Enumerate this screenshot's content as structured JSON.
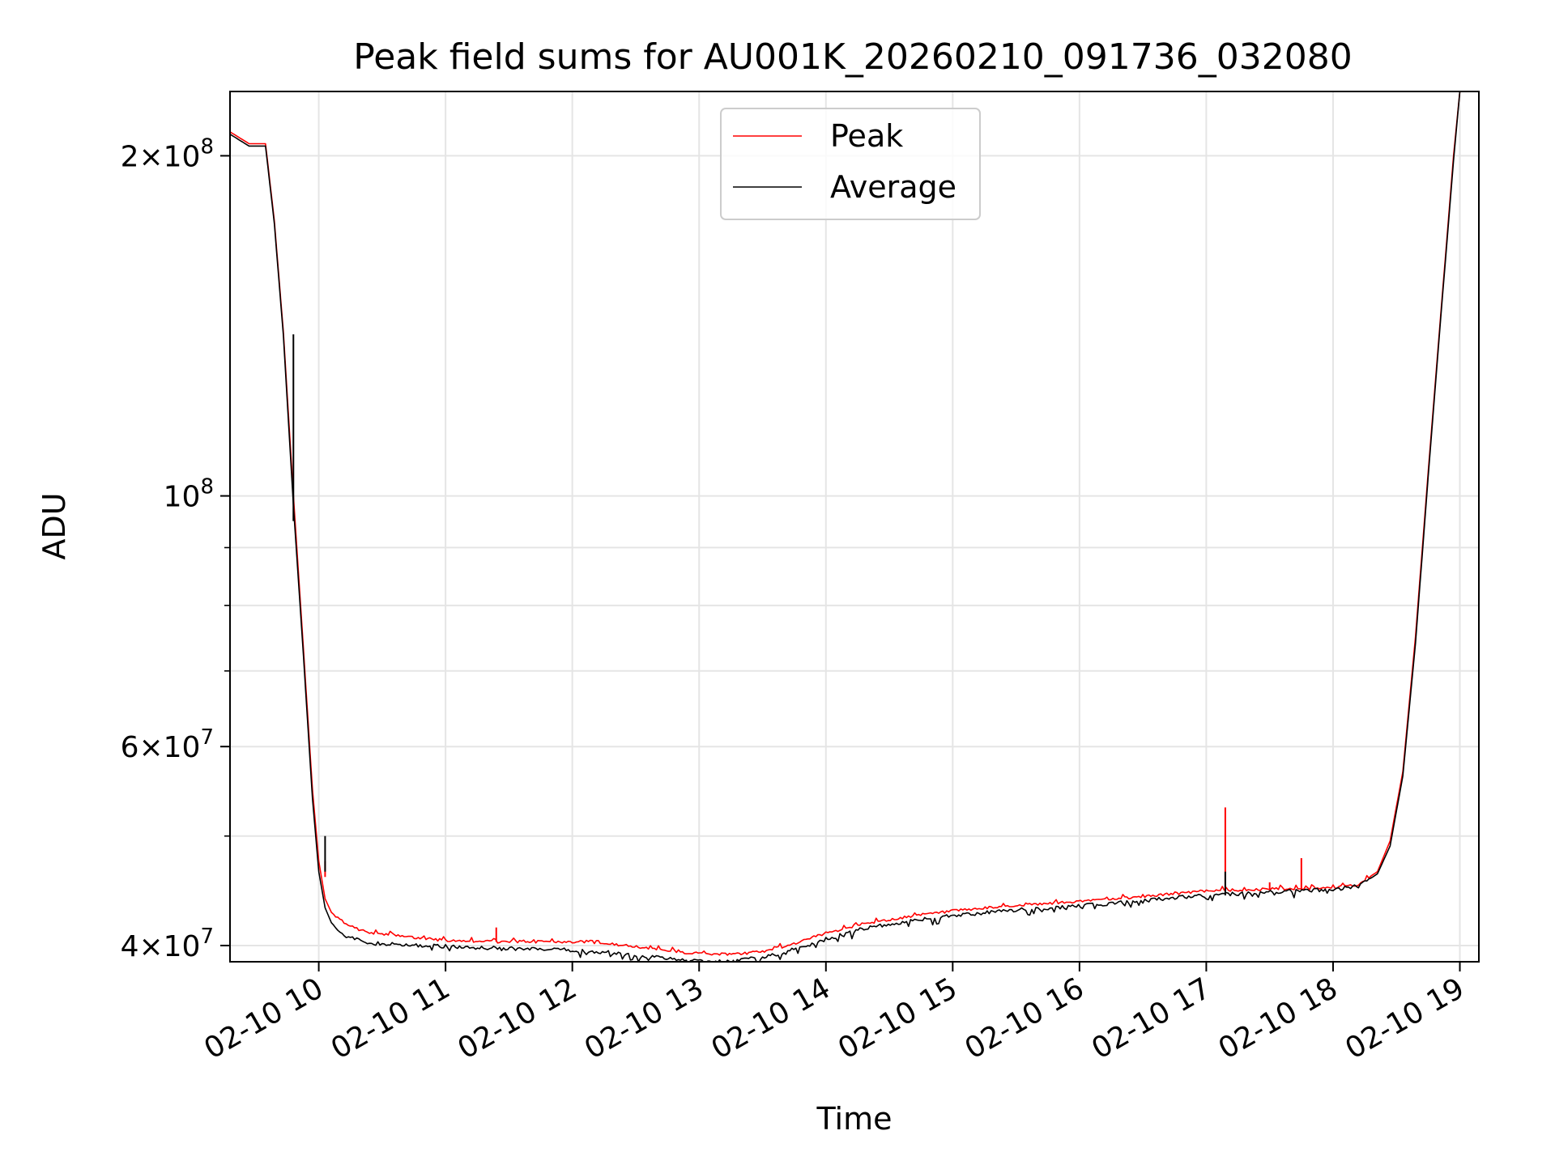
{
  "chart_data": {
    "type": "line",
    "title": "Peak field sums for AU001K_20260210_091736_032080",
    "xlabel": "Time",
    "ylabel": "ADU",
    "x_range_hours": [
      9.3,
      19.15
    ],
    "y_scale": "log",
    "ylim": [
      38700000,
      228000000
    ],
    "grid": true,
    "legend_position": "top-center",
    "x_ticks": [
      {
        "label": "02-10 10",
        "hour": 10
      },
      {
        "label": "02-10 11",
        "hour": 11
      },
      {
        "label": "02-10 12",
        "hour": 12
      },
      {
        "label": "02-10 13",
        "hour": 13
      },
      {
        "label": "02-10 14",
        "hour": 14
      },
      {
        "label": "02-10 15",
        "hour": 15
      },
      {
        "label": "02-10 16",
        "hour": 16
      },
      {
        "label": "02-10 17",
        "hour": 17
      },
      {
        "label": "02-10 18",
        "hour": 18
      },
      {
        "label": "02-10 19",
        "hour": 19
      }
    ],
    "y_major_ticks": [
      {
        "value": 200000000,
        "mantissa": "2",
        "exp": "8"
      },
      {
        "value": 100000000,
        "mantissa": "",
        "exp": "8"
      },
      {
        "value": 60000000,
        "mantissa": "6",
        "exp": "7"
      },
      {
        "value": 40000000,
        "mantissa": "4",
        "exp": "7"
      }
    ],
    "y_minor_ticks": [
      50000000,
      70000000,
      80000000,
      90000000
    ],
    "series": [
      {
        "name": "Peak",
        "color": "#ff0000",
        "x": [
          9.3,
          9.45,
          9.58,
          9.65,
          9.72,
          9.8,
          9.88,
          9.95,
          10.0,
          10.05,
          10.1,
          10.2,
          10.35,
          10.5,
          10.8,
          11.0,
          11.3,
          11.6,
          12.0,
          12.3,
          12.6,
          12.9,
          13.1,
          13.3,
          13.5,
          13.7,
          14.0,
          14.3,
          14.7,
          15.0,
          15.4,
          15.8,
          16.2,
          16.5,
          16.8,
          17.0,
          17.3,
          17.6,
          17.8,
          18.0,
          18.2,
          18.35,
          18.45,
          18.55,
          18.65,
          18.75,
          18.85,
          18.95,
          19.0,
          19.15
        ],
        "y": [
          210000000,
          205000000,
          205000000,
          175000000,
          140000000,
          100000000,
          73000000,
          55000000,
          47500000,
          44000000,
          42800000,
          41800000,
          41200000,
          40900000,
          40600000,
          40400000,
          40300000,
          40300000,
          40300000,
          40100000,
          39800000,
          39400000,
          39300000,
          39300000,
          39500000,
          40000000,
          41000000,
          41800000,
          42500000,
          42900000,
          43300000,
          43600000,
          43900000,
          44200000,
          44500000,
          44700000,
          44800000,
          44900000,
          44900000,
          44950000,
          45300000,
          46500000,
          49500000,
          57000000,
          75000000,
          105000000,
          145000000,
          200000000,
          228000000,
          228000000
        ],
        "spikes": [
          {
            "x": 17.15,
            "y": 53000000
          },
          {
            "x": 17.75,
            "y": 47800000
          },
          {
            "x": 17.5,
            "y": 45500000
          },
          {
            "x": 11.4,
            "y": 41500000
          },
          {
            "x": 10.05,
            "y": 46000000
          }
        ]
      },
      {
        "name": "Average",
        "color": "#000000",
        "x": [
          9.3,
          9.45,
          9.58,
          9.65,
          9.72,
          9.8,
          9.88,
          9.95,
          10.0,
          10.05,
          10.1,
          10.2,
          10.35,
          10.5,
          10.8,
          11.0,
          11.3,
          11.6,
          12.0,
          12.3,
          12.6,
          12.9,
          13.1,
          13.3,
          13.5,
          13.7,
          14.0,
          14.3,
          14.7,
          15.0,
          15.4,
          15.8,
          16.2,
          16.5,
          16.8,
          17.0,
          17.3,
          17.6,
          17.8,
          18.0,
          18.2,
          18.35,
          18.45,
          18.55,
          18.65,
          18.75,
          18.85,
          18.95,
          19.0,
          19.15
        ],
        "y": [
          209000000,
          204000000,
          204000000,
          174000000,
          139000000,
          98000000,
          72000000,
          54000000,
          46500000,
          43200000,
          41900000,
          40800000,
          40300000,
          40100000,
          40000000,
          39900000,
          39800000,
          39700000,
          39600000,
          39400000,
          39100000,
          38800000,
          38700000,
          38800000,
          39000000,
          39500000,
          40500000,
          41400000,
          42100000,
          42500000,
          42900000,
          43200000,
          43500000,
          43800000,
          44100000,
          44300000,
          44500000,
          44600000,
          44700000,
          44800000,
          45100000,
          46300000,
          49000000,
          56500000,
          74000000,
          104000000,
          144000000,
          198000000,
          228000000,
          228000000
        ],
        "spikes": [
          {
            "x": 10.05,
            "y": 50000000
          },
          {
            "x": 17.15,
            "y": 46500000
          },
          {
            "x": 9.8,
            "y": 95000000
          }
        ]
      }
    ]
  }
}
